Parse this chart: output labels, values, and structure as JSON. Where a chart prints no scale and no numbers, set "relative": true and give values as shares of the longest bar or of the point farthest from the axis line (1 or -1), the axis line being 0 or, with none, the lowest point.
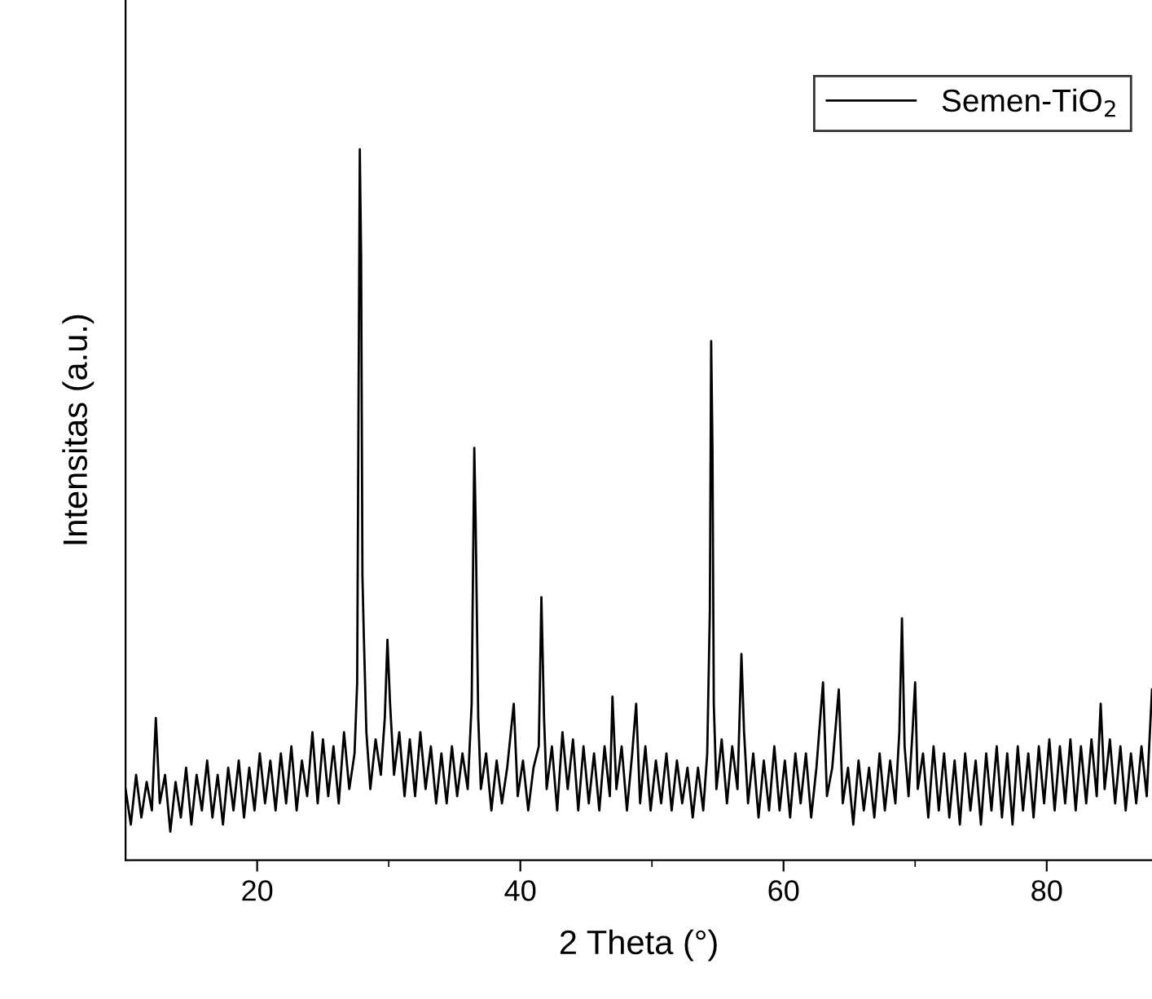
{
  "chart_data": {
    "type": "line",
    "xlabel": "2 Theta (°)",
    "ylabel": "Intensitas (a.u.)",
    "relative": true,
    "xlim": [
      10,
      88
    ],
    "xticks": [
      20,
      {
        "value": 30,
        "label": null
      },
      40,
      {
        "value": 50,
        "label": null
      },
      60,
      {
        "value": 70,
        "label": null
      },
      80
    ],
    "tick_labels": "x",
    "grid": false,
    "legend": "top right",
    "marker": "none",
    "line_style": "solid",
    "x": [
      10.0,
      10.4,
      10.8,
      11.2,
      11.6,
      12.0,
      12.3,
      12.6,
      13.0,
      13.4,
      13.8,
      14.2,
      14.6,
      15.0,
      15.4,
      15.8,
      16.2,
      16.6,
      17.0,
      17.4,
      17.8,
      18.2,
      18.6,
      19.0,
      19.4,
      19.8,
      20.2,
      20.6,
      21.0,
      21.4,
      21.8,
      22.2,
      22.6,
      23.0,
      23.4,
      23.8,
      24.2,
      24.6,
      25.0,
      25.4,
      25.8,
      26.2,
      26.6,
      27.0,
      27.4,
      27.6,
      27.7,
      27.8,
      27.9,
      28.0,
      28.1,
      28.3,
      28.6,
      29.0,
      29.4,
      29.7,
      29.9,
      30.1,
      30.4,
      30.8,
      31.2,
      31.6,
      32.0,
      32.4,
      32.8,
      33.2,
      33.6,
      34.0,
      34.4,
      34.8,
      35.2,
      35.6,
      36.0,
      36.3,
      36.5,
      36.6,
      36.8,
      37.0,
      37.4,
      37.8,
      38.2,
      38.6,
      39.0,
      39.5,
      39.8,
      40.2,
      40.6,
      41.0,
      41.4,
      41.6,
      41.8,
      42.0,
      42.4,
      42.8,
      43.2,
      43.6,
      44.0,
      44.4,
      44.8,
      45.2,
      45.6,
      46.0,
      46.4,
      46.8,
      47.0,
      47.3,
      47.7,
      48.1,
      48.5,
      48.8,
      49.1,
      49.5,
      49.9,
      50.3,
      50.7,
      51.1,
      51.5,
      51.9,
      52.3,
      52.7,
      53.1,
      53.5,
      53.9,
      54.2,
      54.4,
      54.5,
      54.6,
      54.7,
      54.9,
      55.3,
      55.7,
      56.1,
      56.5,
      56.8,
      57.0,
      57.3,
      57.7,
      58.1,
      58.5,
      58.9,
      59.3,
      59.7,
      60.1,
      60.5,
      60.9,
      61.3,
      61.7,
      62.1,
      62.5,
      63.0,
      63.3,
      63.7,
      64.2,
      64.5,
      64.9,
      65.3,
      65.7,
      66.1,
      66.5,
      66.9,
      67.3,
      67.7,
      68.1,
      68.5,
      68.8,
      69.0,
      69.2,
      69.5,
      69.8,
      70.0,
      70.2,
      70.6,
      71.0,
      71.4,
      71.8,
      72.2,
      72.6,
      73.0,
      73.4,
      73.8,
      74.2,
      74.6,
      75.0,
      75.4,
      75.8,
      76.2,
      76.6,
      77.0,
      77.4,
      77.8,
      78.2,
      78.6,
      79.0,
      79.4,
      79.8,
      80.2,
      80.6,
      81.0,
      81.4,
      81.8,
      82.2,
      82.6,
      83.0,
      83.4,
      83.8,
      84.1,
      84.4,
      84.8,
      85.2,
      85.6,
      86.0,
      86.4,
      86.8,
      87.2,
      87.6,
      88.0
    ],
    "series": [
      {
        "name": "Semen-TiO$_{2}$",
        "color": "#000000",
        "values": [
          0.1,
          0.05,
          0.12,
          0.06,
          0.11,
          0.07,
          0.2,
          0.08,
          0.12,
          0.04,
          0.11,
          0.06,
          0.13,
          0.05,
          0.12,
          0.07,
          0.14,
          0.06,
          0.12,
          0.05,
          0.13,
          0.07,
          0.14,
          0.06,
          0.13,
          0.07,
          0.15,
          0.08,
          0.14,
          0.07,
          0.15,
          0.08,
          0.16,
          0.07,
          0.14,
          0.09,
          0.18,
          0.08,
          0.17,
          0.09,
          0.16,
          0.08,
          0.18,
          0.1,
          0.15,
          0.25,
          0.63,
          1.0,
          0.85,
          0.4,
          0.32,
          0.18,
          0.1,
          0.17,
          0.12,
          0.2,
          0.31,
          0.22,
          0.12,
          0.18,
          0.09,
          0.17,
          0.09,
          0.18,
          0.1,
          0.16,
          0.08,
          0.15,
          0.08,
          0.16,
          0.09,
          0.15,
          0.1,
          0.22,
          0.58,
          0.48,
          0.2,
          0.1,
          0.15,
          0.07,
          0.14,
          0.08,
          0.13,
          0.22,
          0.09,
          0.14,
          0.07,
          0.13,
          0.16,
          0.37,
          0.2,
          0.1,
          0.16,
          0.07,
          0.18,
          0.1,
          0.17,
          0.07,
          0.16,
          0.08,
          0.15,
          0.07,
          0.16,
          0.09,
          0.23,
          0.1,
          0.16,
          0.07,
          0.15,
          0.22,
          0.08,
          0.16,
          0.07,
          0.14,
          0.08,
          0.15,
          0.07,
          0.14,
          0.08,
          0.13,
          0.06,
          0.13,
          0.07,
          0.15,
          0.35,
          0.73,
          0.58,
          0.22,
          0.1,
          0.17,
          0.08,
          0.16,
          0.1,
          0.29,
          0.18,
          0.08,
          0.15,
          0.06,
          0.14,
          0.07,
          0.16,
          0.07,
          0.14,
          0.06,
          0.15,
          0.08,
          0.15,
          0.06,
          0.13,
          0.25,
          0.09,
          0.13,
          0.24,
          0.08,
          0.13,
          0.05,
          0.14,
          0.07,
          0.13,
          0.06,
          0.15,
          0.07,
          0.14,
          0.08,
          0.18,
          0.34,
          0.16,
          0.09,
          0.18,
          0.25,
          0.1,
          0.15,
          0.06,
          0.16,
          0.07,
          0.15,
          0.06,
          0.14,
          0.05,
          0.15,
          0.07,
          0.14,
          0.05,
          0.15,
          0.07,
          0.16,
          0.06,
          0.15,
          0.05,
          0.16,
          0.07,
          0.15,
          0.06,
          0.16,
          0.08,
          0.17,
          0.07,
          0.16,
          0.08,
          0.17,
          0.07,
          0.16,
          0.08,
          0.17,
          0.09,
          0.22,
          0.1,
          0.17,
          0.08,
          0.16,
          0.07,
          0.15,
          0.08,
          0.16,
          0.09,
          0.24
        ]
      }
    ]
  }
}
